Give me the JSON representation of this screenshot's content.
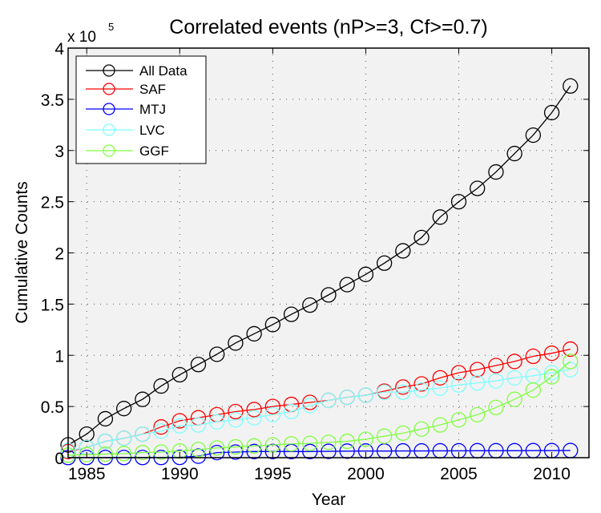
{
  "chart_data": {
    "type": "line",
    "title": "Correlated events (nP>=3, Cf>=0.7)",
    "xlabel": "Year",
    "ylabel": "Cumulative Counts",
    "y_multiplier_label": "x 10",
    "y_multiplier_exponent": "5",
    "xlim": [
      1984,
      2012
    ],
    "ylim": [
      0,
      4
    ],
    "y_units": "x 10^5 counts",
    "grid": true,
    "legend_position": "top-left",
    "xticks": [
      1985,
      1990,
      1995,
      2000,
      2005,
      2010
    ],
    "xtick_labels": [
      "1985",
      "1990",
      "1995",
      "2000",
      "2005",
      "2010"
    ],
    "yticks": [
      0,
      0.5,
      1,
      1.5,
      2,
      2.5,
      3,
      3.5,
      4
    ],
    "ytick_labels": [
      "0",
      "0.5",
      "1",
      "1.5",
      "2",
      "2.5",
      "3",
      "3.5",
      "4"
    ],
    "x": [
      1984,
      1985,
      1986,
      1987,
      1988,
      1989,
      1990,
      1991,
      1992,
      1993,
      1994,
      1995,
      1996,
      1997,
      1998,
      1999,
      2000,
      2001,
      2002,
      2003,
      2004,
      2005,
      2006,
      2007,
      2008,
      2009,
      2010,
      2011
    ],
    "series": [
      {
        "name": "All Data",
        "color": "#000000",
        "values": [
          0.125,
          0.23,
          0.38,
          0.48,
          0.57,
          0.7,
          0.81,
          0.91,
          1.01,
          1.12,
          1.21,
          1.3,
          1.4,
          1.49,
          1.59,
          1.69,
          1.79,
          1.9,
          2.02,
          2.15,
          2.35,
          2.5,
          2.63,
          2.79,
          2.97,
          3.15,
          3.37,
          3.63
        ]
      },
      {
        "name": "SAF",
        "color": "#ff0000",
        "values": [
          0.06,
          0.1,
          0.16,
          0.19,
          0.23,
          0.3,
          0.36,
          0.39,
          0.42,
          0.45,
          0.47,
          0.5,
          0.52,
          0.54,
          0.56,
          0.59,
          0.61,
          0.65,
          0.69,
          0.72,
          0.78,
          0.83,
          0.86,
          0.9,
          0.94,
          0.99,
          1.02,
          1.06
        ]
      },
      {
        "name": "MTJ",
        "color": "#0000ff",
        "values": [
          0.002,
          0.002,
          0.002,
          0.002,
          0.002,
          0.002,
          0.003,
          0.015,
          0.05,
          0.055,
          0.06,
          0.06,
          0.06,
          0.06,
          0.062,
          0.064,
          0.065,
          0.065,
          0.066,
          0.066,
          0.067,
          0.067,
          0.068,
          0.068,
          0.068,
          0.069,
          0.069,
          0.07
        ]
      },
      {
        "name": "LVC",
        "color": "#80ffff",
        "values": [
          0.07,
          0.1,
          0.16,
          0.19,
          0.23,
          0.26,
          0.31,
          0.32,
          0.35,
          0.37,
          0.39,
          0.42,
          0.45,
          0.51,
          0.56,
          0.59,
          0.61,
          0.64,
          0.64,
          0.66,
          0.68,
          0.71,
          0.73,
          0.75,
          0.78,
          0.8,
          0.83,
          0.86
        ]
      },
      {
        "name": "GGF",
        "color": "#80ff40",
        "values": [
          0.025,
          0.03,
          0.035,
          0.04,
          0.05,
          0.055,
          0.065,
          0.08,
          0.095,
          0.105,
          0.115,
          0.125,
          0.135,
          0.14,
          0.15,
          0.16,
          0.18,
          0.21,
          0.24,
          0.28,
          0.32,
          0.37,
          0.42,
          0.49,
          0.57,
          0.66,
          0.79,
          0.94
        ]
      }
    ]
  }
}
